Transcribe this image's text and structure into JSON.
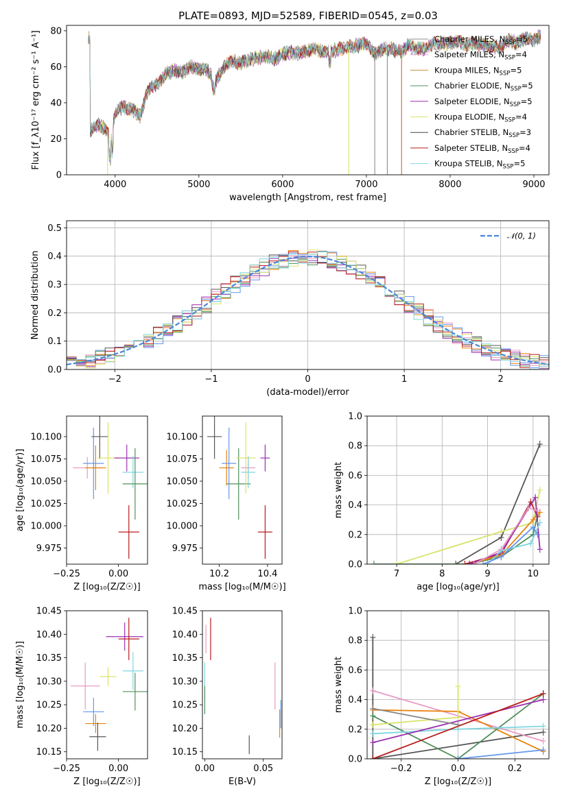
{
  "title": "PLATE=0893, MJD=52589, FIBERID=0545, z=0.03",
  "colors": [
    "#6495ed",
    "#e8820c",
    "#e36ca4",
    "#8bc0a0",
    "#9b2fae",
    "#c9e266",
    "#555555",
    "#b71c1c",
    "#80deea",
    "#3d8b6d",
    "#d8e570",
    "#8e24aa"
  ],
  "model_colors": [
    "#8d8d8d",
    "#e89ac4",
    "#c9913c",
    "#4f8f5a",
    "#9b2fae",
    "#d9e36a",
    "#444444",
    "#b71c1c",
    "#7fd5e0"
  ],
  "chart_data": [
    {
      "id": "spectrum",
      "type": "line",
      "xlabel": "wavelength [Angstrom, rest frame]",
      "ylabel": "Flux [f_λ10⁻¹⁷ erg cm⁻² s⁻¹ A⁻¹]",
      "xlim": [
        3420,
        9180
      ],
      "ylim": [
        0,
        83
      ],
      "xticks": [
        4000,
        5000,
        6000,
        7000,
        8000,
        9000
      ],
      "yticks": [
        0,
        20,
        40,
        60,
        80
      ],
      "grid": false,
      "legend_position": "right",
      "series": [
        {
          "name": "Chabrier MILES, N",
          "sub": "SSP",
          "suffix": "=5"
        },
        {
          "name": "Salpeter MILES, N",
          "sub": "SSP",
          "suffix": "=4"
        },
        {
          "name": "Kroupa MILES, N",
          "sub": "SSP",
          "suffix": "=5"
        },
        {
          "name": "Chabrier ELODIE, N",
          "sub": "SSP",
          "suffix": "=5"
        },
        {
          "name": "Salpeter ELODIE, N",
          "sub": "SSP",
          "suffix": "=5"
        },
        {
          "name": "Kroupa ELODIE, N",
          "sub": "SSP",
          "suffix": "=4"
        },
        {
          "name": "Chabrier STELIB, N",
          "sub": "SSP",
          "suffix": "=3"
        },
        {
          "name": "Salpeter STELIB, N",
          "sub": "SSP",
          "suffix": "=4"
        },
        {
          "name": "Kroupa STELIB, N",
          "sub": "SSP",
          "suffix": "=5"
        }
      ],
      "envelope": [
        [
          3700,
          24
        ],
        [
          3800,
          28
        ],
        [
          3900,
          25
        ],
        [
          3950,
          18
        ],
        [
          4000,
          35
        ],
        [
          4100,
          38
        ],
        [
          4200,
          36
        ],
        [
          4300,
          33
        ],
        [
          4400,
          48
        ],
        [
          4500,
          50
        ],
        [
          4600,
          56
        ],
        [
          4700,
          58
        ],
        [
          4800,
          57
        ],
        [
          4900,
          60
        ],
        [
          5000,
          59
        ],
        [
          5100,
          58
        ],
        [
          5200,
          52
        ],
        [
          5300,
          60
        ],
        [
          5400,
          63
        ],
        [
          5500,
          62
        ],
        [
          5600,
          64
        ],
        [
          5700,
          65
        ],
        [
          5800,
          66
        ],
        [
          5900,
          64
        ],
        [
          6000,
          67
        ],
        [
          6100,
          68
        ],
        [
          6200,
          67
        ],
        [
          6300,
          69
        ],
        [
          6400,
          70
        ],
        [
          6500,
          68
        ],
        [
          6600,
          69
        ],
        [
          6700,
          70
        ],
        [
          6800,
          71
        ],
        [
          6900,
          72
        ],
        [
          7000,
          73
        ],
        [
          7100,
          67
        ],
        [
          7200,
          70
        ],
        [
          7300,
          70
        ],
        [
          7400,
          68
        ],
        [
          7500,
          72
        ],
        [
          7600,
          70
        ],
        [
          7700,
          70
        ],
        [
          7800,
          73
        ],
        [
          7900,
          73
        ],
        [
          8000,
          73
        ],
        [
          8100,
          74
        ],
        [
          8200,
          72
        ],
        [
          8300,
          73
        ],
        [
          8400,
          72
        ],
        [
          8500,
          71
        ],
        [
          8600,
          71
        ],
        [
          8700,
          75
        ],
        [
          8800,
          73
        ],
        [
          8900,
          76
        ],
        [
          9000,
          75
        ],
        [
          9080,
          77
        ]
      ],
      "drops": [
        [
          3910,
          "#d9e36a"
        ],
        [
          6790,
          "#d9e36a"
        ],
        [
          7100,
          "#8d8d8d"
        ],
        [
          7250,
          "#8d8d8d"
        ],
        [
          7420,
          "#c9682c"
        ]
      ]
    },
    {
      "id": "residual-hist",
      "type": "histogram",
      "xlabel": "(data-model)/error",
      "ylabel": "Normed distribution",
      "xlim": [
        -2.5,
        2.5
      ],
      "ylim": [
        0,
        0.525
      ],
      "xticks": [
        -2,
        -1,
        0,
        1,
        2
      ],
      "yticks": [
        0.0,
        0.1,
        0.2,
        0.3,
        0.4,
        0.5
      ],
      "grid": true,
      "legend_position": "top-right",
      "legend_label": "𝒩(0, 1)",
      "bin_width": 0.1
    },
    {
      "id": "age-vs-Z",
      "type": "scatter",
      "xlabel": "Z [log₁₀(Z/Z☉)]",
      "ylabel": "age  [log₁₀(age/yr)]",
      "xlim": [
        -0.25,
        0.14
      ],
      "ylim": [
        9.957,
        10.123
      ],
      "xticks": [
        -0.25,
        0.0
      ],
      "yticks": [
        9.975,
        10.0,
        10.025,
        10.05,
        10.075,
        10.1
      ],
      "points": [
        {
          "x": -0.15,
          "y": 10.065,
          "xerr": 0.07,
          "yerr": 0.012,
          "c": "#e89ac4"
        },
        {
          "x": -0.12,
          "y": 10.07,
          "xerr": 0.05,
          "yerr": 0.04,
          "c": "#6495ed"
        },
        {
          "x": -0.11,
          "y": 10.065,
          "xerr": 0.05,
          "yerr": 0.025,
          "c": "#e8820c"
        },
        {
          "x": -0.09,
          "y": 10.1,
          "xerr": 0.04,
          "yerr": 0.025,
          "c": "#555555"
        },
        {
          "x": -0.05,
          "y": 10.076,
          "xerr": 0.05,
          "yerr": 0.04,
          "c": "#d9e36a"
        },
        {
          "x": 0.04,
          "y": 10.076,
          "xerr": 0.06,
          "yerr": 0.015,
          "c": "#9b2fae"
        },
        {
          "x": 0.07,
          "y": 10.06,
          "xerr": 0.05,
          "yerr": 0.018,
          "c": "#7fd5e0"
        },
        {
          "x": 0.08,
          "y": 10.047,
          "xerr": 0.06,
          "yerr": 0.04,
          "c": "#4f8f5a"
        },
        {
          "x": 0.05,
          "y": 9.993,
          "xerr": 0.05,
          "yerr": 0.03,
          "c": "#b71c1c"
        }
      ]
    },
    {
      "id": "age-vs-mass",
      "type": "scatter",
      "xlabel": "mass [log₁₀(M/M☉)]",
      "ylabel": "",
      "xlim": [
        10.13,
        10.46
      ],
      "ylim": [
        9.957,
        10.123
      ],
      "xticks": [
        10.2,
        10.4
      ],
      "yticks": [
        9.975,
        10.0,
        10.025,
        10.05,
        10.075,
        10.1
      ],
      "points": [
        {
          "x": 10.18,
          "y": 10.1,
          "xerr": 0.03,
          "yerr": 0.025,
          "c": "#555555"
        },
        {
          "x": 10.23,
          "y": 10.065,
          "xerr": 0.03,
          "yerr": 0.02,
          "c": "#e8820c"
        },
        {
          "x": 10.24,
          "y": 10.07,
          "xerr": 0.03,
          "yerr": 0.04,
          "c": "#6495ed"
        },
        {
          "x": 10.28,
          "y": 10.047,
          "xerr": 0.05,
          "yerr": 0.04,
          "c": "#4f8f5a"
        },
        {
          "x": 10.31,
          "y": 10.076,
          "xerr": 0.04,
          "yerr": 0.04,
          "c": "#d9e36a"
        },
        {
          "x": 10.32,
          "y": 10.065,
          "xerr": 0.03,
          "yerr": 0.012,
          "c": "#e89ac4"
        },
        {
          "x": 10.32,
          "y": 10.06,
          "xerr": 0.03,
          "yerr": 0.018,
          "c": "#7fd5e0"
        },
        {
          "x": 10.39,
          "y": 10.076,
          "xerr": 0.02,
          "yerr": 0.015,
          "c": "#9b2fae"
        },
        {
          "x": 10.39,
          "y": 9.993,
          "xerr": 0.03,
          "yerr": 0.03,
          "c": "#b71c1c"
        }
      ]
    },
    {
      "id": "weight-vs-age",
      "type": "line",
      "xlabel": "age  [log₁₀(age/yr)]",
      "ylabel": "mass weight",
      "xlim": [
        6.35,
        10.35
      ],
      "ylim": [
        0,
        1.0
      ],
      "xticks": [
        7,
        8,
        9,
        10
      ],
      "yticks": [
        0.0,
        0.2,
        0.4,
        0.6,
        0.8,
        1.0
      ],
      "grid": true,
      "series": [
        {
          "c": "#555555",
          "pts": [
            [
              8.3,
              0.0
            ],
            [
              9.3,
              0.18
            ],
            [
              10.15,
              0.81
            ]
          ]
        },
        {
          "c": "#d9e36a",
          "pts": [
            [
              7.0,
              0.0
            ],
            [
              9.3,
              0.22
            ],
            [
              10.0,
              0.28
            ],
            [
              10.15,
              0.5
            ]
          ]
        },
        {
          "c": "#4f8f5a",
          "pts": [
            [
              6.5,
              0.0
            ],
            [
              8.6,
              0.0
            ],
            [
              9.3,
              0.05
            ],
            [
              10.0,
              0.2
            ],
            [
              10.1,
              0.33
            ]
          ]
        },
        {
          "c": "#b71c1c",
          "pts": [
            [
              8.5,
              0.0
            ],
            [
              9.3,
              0.07
            ],
            [
              9.95,
              0.42
            ],
            [
              10.1,
              0.32
            ]
          ]
        },
        {
          "c": "#e8820c",
          "pts": [
            [
              8.6,
              0.0
            ],
            [
              9.3,
              0.06
            ],
            [
              10.0,
              0.3
            ],
            [
              10.15,
              0.35
            ]
          ]
        },
        {
          "c": "#9b2fae",
          "pts": [
            [
              8.6,
              0.0
            ],
            [
              9.3,
              0.08
            ],
            [
              10.05,
              0.45
            ],
            [
              10.15,
              0.1
            ]
          ]
        },
        {
          "c": "#e89ac4",
          "pts": [
            [
              8.7,
              0.0
            ],
            [
              9.3,
              0.1
            ],
            [
              9.9,
              0.38
            ],
            [
              10.1,
              0.36
            ]
          ]
        },
        {
          "c": "#7fd5e0",
          "pts": [
            [
              9.0,
              0.0
            ],
            [
              9.3,
              0.09
            ],
            [
              9.95,
              0.14
            ],
            [
              10.15,
              0.28
            ]
          ]
        },
        {
          "c": "#6495ed",
          "pts": [
            [
              8.9,
              0.0
            ],
            [
              9.3,
              0.05
            ],
            [
              10.0,
              0.25
            ],
            [
              10.1,
              0.2
            ]
          ]
        }
      ]
    },
    {
      "id": "mass-vs-Z",
      "type": "scatter",
      "xlabel": "Z [log₁₀(Z/Z☉)]",
      "ylabel": "mass [log₁₀(M/M☉)]",
      "xlim": [
        -0.25,
        0.14
      ],
      "ylim": [
        10.135,
        10.45
      ],
      "xticks": [
        -0.25,
        0.0
      ],
      "yticks": [
        10.15,
        10.2,
        10.25,
        10.3,
        10.35,
        10.4,
        10.45
      ],
      "points": [
        {
          "x": -0.16,
          "y": 10.29,
          "xerr": 0.07,
          "yerr": 0.05,
          "c": "#e89ac4"
        },
        {
          "x": -0.12,
          "y": 10.235,
          "xerr": 0.05,
          "yerr": 0.03,
          "c": "#6495ed"
        },
        {
          "x": -0.11,
          "y": 10.21,
          "xerr": 0.05,
          "yerr": 0.02,
          "c": "#e8820c"
        },
        {
          "x": -0.1,
          "y": 10.182,
          "xerr": 0.04,
          "yerr": 0.03,
          "c": "#555555"
        },
        {
          "x": -0.05,
          "y": 10.31,
          "xerr": 0.04,
          "yerr": 0.02,
          "c": "#d9e36a"
        },
        {
          "x": 0.03,
          "y": 10.395,
          "xerr": 0.09,
          "yerr": 0.03,
          "c": "#9b2fae"
        },
        {
          "x": 0.05,
          "y": 10.39,
          "xerr": 0.05,
          "yerr": 0.045,
          "c": "#b71c1c"
        },
        {
          "x": 0.07,
          "y": 10.322,
          "xerr": 0.05,
          "yerr": 0.04,
          "c": "#7fd5e0"
        },
        {
          "x": 0.08,
          "y": 10.278,
          "xerr": 0.06,
          "yerr": 0.04,
          "c": "#4f8f5a"
        }
      ]
    },
    {
      "id": "mass-vs-ebv",
      "type": "scatter",
      "xlabel": "E(B-V)",
      "ylabel": "",
      "xlim": [
        -0.002,
        0.066
      ],
      "ylim": [
        10.135,
        10.45
      ],
      "xticks": [
        0.0,
        0.05
      ],
      "yticks": [
        10.15,
        10.2,
        10.25,
        10.3,
        10.35,
        10.4,
        10.45
      ],
      "points": [
        {
          "x": 0.0,
          "y": 10.3,
          "xerr": 0,
          "yerr": 0.04,
          "c": "#7fd5e0"
        },
        {
          "x": 0.0,
          "y": 10.26,
          "xerr": 0,
          "yerr": 0.03,
          "c": "#4f8f5a"
        },
        {
          "x": 0.001,
          "y": 10.39,
          "xerr": 0,
          "yerr": 0.03,
          "c": "#e89ac4"
        },
        {
          "x": 0.005,
          "y": 10.39,
          "xerr": 0,
          "yerr": 0.045,
          "c": "#b71c1c"
        },
        {
          "x": 0.038,
          "y": 10.165,
          "xerr": 0,
          "yerr": 0.02,
          "c": "#555555"
        },
        {
          "x": 0.06,
          "y": 10.29,
          "xerr": 0,
          "yerr": 0.05,
          "c": "#e89ac4"
        },
        {
          "x": 0.064,
          "y": 10.21,
          "xerr": 0,
          "yerr": 0.03,
          "c": "#e8820c"
        },
        {
          "x": 0.065,
          "y": 10.23,
          "xerr": 0,
          "yerr": 0.03,
          "c": "#6495ed"
        }
      ]
    },
    {
      "id": "weight-vs-Z",
      "type": "line",
      "xlabel": "Z [log₁₀(Z/Z☉)]",
      "ylabel": "mass weight",
      "xlim": [
        -0.32,
        0.32
      ],
      "ylim": [
        0,
        1.0
      ],
      "xticks": [
        -0.2,
        0.0,
        0.2
      ],
      "yticks": [
        0.0,
        0.2,
        0.4,
        0.6,
        0.8,
        1.0
      ],
      "grid": true,
      "series": [
        {
          "c": "#555555",
          "pts": [
            [
              -0.3,
              0.82
            ],
            [
              -0.3,
              0.0
            ],
            [
              0.3,
              0.18
            ]
          ]
        },
        {
          "c": "#e89ac4",
          "pts": [
            [
              -0.3,
              0.46
            ],
            [
              0.3,
              0.12
            ]
          ]
        },
        {
          "c": "#e8820c",
          "pts": [
            [
              -0.3,
              0.33
            ],
            [
              0.0,
              0.32
            ],
            [
              0.3,
              0.05
            ]
          ]
        },
        {
          "c": "#4f8f5a",
          "pts": [
            [
              -0.3,
              0.29
            ],
            [
              0.0,
              0.0
            ],
            [
              0.3,
              0.44
            ]
          ]
        },
        {
          "c": "#d9e36a",
          "pts": [
            [
              -0.3,
              0.23
            ],
            [
              0.0,
              0.28
            ],
            [
              0.0,
              0.49
            ]
          ]
        },
        {
          "c": "#7fd5e0",
          "pts": [
            [
              -0.3,
              0.17
            ],
            [
              0.0,
              0.2
            ],
            [
              0.3,
              0.22
            ]
          ]
        },
        {
          "c": "#9b2fae",
          "pts": [
            [
              -0.3,
              0.11
            ],
            [
              0.3,
              0.4
            ]
          ]
        },
        {
          "c": "#b71c1c",
          "pts": [
            [
              -0.3,
              0.0
            ],
            [
              0.3,
              0.44
            ]
          ]
        },
        {
          "c": "#6495ed",
          "pts": [
            [
              0.0,
              0.0
            ],
            [
              0.3,
              0.06
            ]
          ]
        },
        {
          "c": "#888888",
          "pts": [
            [
              -0.3,
              0.34
            ],
            [
              0.0,
              0.23
            ]
          ]
        }
      ]
    }
  ]
}
